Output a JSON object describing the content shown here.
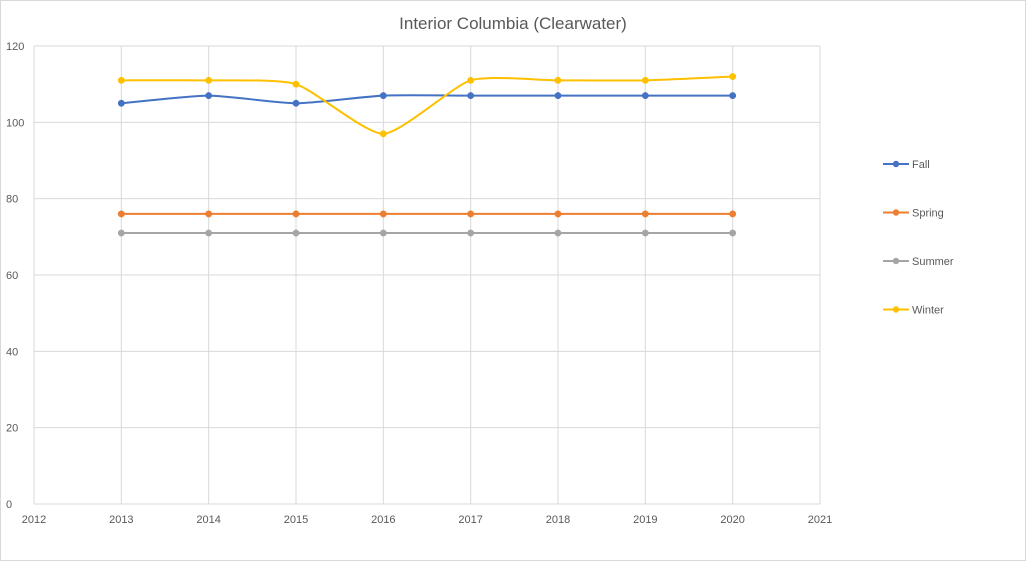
{
  "chart_data": {
    "type": "line",
    "title": "Interior Columbia (Clearwater)",
    "xlabel": "",
    "ylabel": "",
    "xlim": [
      2012,
      2021
    ],
    "ylim": [
      0,
      120
    ],
    "x_ticks": [
      2012,
      2013,
      2014,
      2015,
      2016,
      2017,
      2018,
      2019,
      2020,
      2021
    ],
    "y_ticks": [
      0,
      20,
      40,
      60,
      80,
      100,
      120
    ],
    "grid": true,
    "smoothed": true,
    "legend_position": "right",
    "x": [
      2013,
      2014,
      2015,
      2016,
      2017,
      2018,
      2019,
      2020
    ],
    "series": [
      {
        "name": "Fall",
        "color": "#4472c4",
        "values": [
          105,
          107,
          105,
          107,
          107,
          107,
          107,
          107
        ]
      },
      {
        "name": "Spring",
        "color": "#ed7d31",
        "values": [
          76,
          76,
          76,
          76,
          76,
          76,
          76,
          76
        ]
      },
      {
        "name": "Summer",
        "color": "#a5a5a5",
        "values": [
          71,
          71,
          71,
          71,
          71,
          71,
          71,
          71
        ]
      },
      {
        "name": "Winter",
        "color": "#ffc000",
        "values": [
          111,
          111,
          110,
          97,
          111,
          111,
          111,
          112
        ]
      }
    ]
  }
}
